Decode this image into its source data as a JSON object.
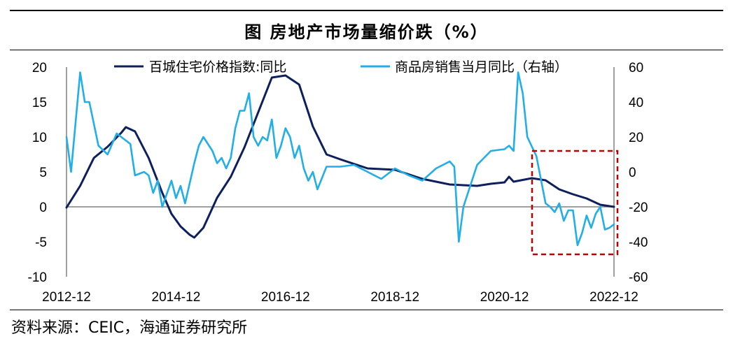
{
  "title": "图    房地产市场量缩价跌（%）",
  "source": "资料来源：CEIC，海通证券研究所",
  "colors": {
    "index_line": "#0d1f5c",
    "sales_line": "#22aee6",
    "highlight_box": "#c00000"
  },
  "chart_data": {
    "type": "line",
    "x_ticks": [
      "2012-12",
      "2014-12",
      "2016-12",
      "2018-12",
      "2020-12",
      "2022-12"
    ],
    "x_range": [
      "2012-12",
      "2022-12"
    ],
    "y_left": {
      "range": [
        -10,
        20
      ],
      "ticks": [
        -10,
        -5,
        0,
        5,
        10,
        15,
        20
      ]
    },
    "y_right": {
      "range": [
        -60,
        60
      ],
      "ticks": [
        -60,
        -40,
        -20,
        0,
        20,
        40,
        60
      ]
    },
    "grid": false,
    "legend_placement": "top",
    "series": [
      {
        "name": "百城住宅价格指数:同比",
        "axis": "left",
        "color": "#0d1f5c",
        "points": [
          [
            "2012-12",
            -0.1
          ],
          [
            "2013-03",
            3.0
          ],
          [
            "2013-06",
            7.0
          ],
          [
            "2013-09",
            8.6
          ],
          [
            "2013-12",
            10.6
          ],
          [
            "2014-01",
            11.4
          ],
          [
            "2014-03",
            10.8
          ],
          [
            "2014-06",
            7.0
          ],
          [
            "2014-09",
            2.0
          ],
          [
            "2014-11",
            -1.0
          ],
          [
            "2015-01",
            -2.8
          ],
          [
            "2015-03",
            -4.0
          ],
          [
            "2015-04",
            -4.4
          ],
          [
            "2015-06",
            -3.0
          ],
          [
            "2015-09",
            1.3
          ],
          [
            "2015-12",
            4.3
          ],
          [
            "2016-03",
            8.5
          ],
          [
            "2016-06",
            13.5
          ],
          [
            "2016-09",
            18.5
          ],
          [
            "2016-12",
            18.8
          ],
          [
            "2017-03",
            17.5
          ],
          [
            "2017-06",
            11.5
          ],
          [
            "2017-09",
            7.5
          ],
          [
            "2017-12",
            6.8
          ],
          [
            "2018-06",
            5.5
          ],
          [
            "2018-12",
            5.3
          ],
          [
            "2019-06",
            4.0
          ],
          [
            "2019-12",
            3.2
          ],
          [
            "2020-06",
            3.0
          ],
          [
            "2020-09",
            3.3
          ],
          [
            "2020-12",
            3.5
          ],
          [
            "2021-01",
            4.3
          ],
          [
            "2021-02",
            3.6
          ],
          [
            "2021-06",
            4.1
          ],
          [
            "2021-09",
            3.8
          ],
          [
            "2021-12",
            2.5
          ],
          [
            "2022-03",
            1.8
          ],
          [
            "2022-06",
            1.2
          ],
          [
            "2022-09",
            0.3
          ],
          [
            "2022-12",
            0.0
          ]
        ]
      },
      {
        "name": "商品房销售当月同比（右轴）",
        "axis": "right",
        "color": "#22aee6",
        "points": [
          [
            "2012-12",
            20
          ],
          [
            "2013-01",
            0
          ],
          [
            "2013-03",
            57
          ],
          [
            "2013-04",
            40
          ],
          [
            "2013-05",
            40
          ],
          [
            "2013-07",
            15
          ],
          [
            "2013-09",
            10
          ],
          [
            "2013-11",
            22
          ],
          [
            "2013-12",
            20
          ],
          [
            "2014-02",
            16
          ],
          [
            "2014-03",
            -2
          ],
          [
            "2014-05",
            0
          ],
          [
            "2014-06",
            -2
          ],
          [
            "2014-07",
            -12
          ],
          [
            "2014-08",
            -5
          ],
          [
            "2014-09",
            -20
          ],
          [
            "2014-11",
            -5
          ],
          [
            "2014-12",
            -15
          ],
          [
            "2015-01",
            -8
          ],
          [
            "2015-02",
            -18
          ],
          [
            "2015-04",
            5
          ],
          [
            "2015-05",
            15
          ],
          [
            "2015-06",
            20
          ],
          [
            "2015-08",
            12
          ],
          [
            "2015-09",
            5
          ],
          [
            "2015-10",
            8
          ],
          [
            "2015-11",
            2
          ],
          [
            "2015-12",
            8
          ],
          [
            "2016-01",
            25
          ],
          [
            "2016-02",
            35
          ],
          [
            "2016-03",
            35
          ],
          [
            "2016-04",
            45
          ],
          [
            "2016-05",
            20
          ],
          [
            "2016-06",
            15
          ],
          [
            "2016-07",
            20
          ],
          [
            "2016-08",
            18
          ],
          [
            "2016-09",
            30
          ],
          [
            "2016-10",
            8
          ],
          [
            "2016-11",
            15
          ],
          [
            "2016-12",
            25
          ],
          [
            "2017-01",
            20
          ],
          [
            "2017-02",
            8
          ],
          [
            "2017-03",
            15
          ],
          [
            "2017-04",
            2
          ],
          [
            "2017-05",
            -5
          ],
          [
            "2017-06",
            0
          ],
          [
            "2017-07",
            -10
          ],
          [
            "2017-09",
            3
          ],
          [
            "2017-12",
            3
          ],
          [
            "2018-03",
            4
          ],
          [
            "2018-06",
            0
          ],
          [
            "2018-09",
            -4
          ],
          [
            "2018-12",
            2
          ],
          [
            "2019-03",
            -2
          ],
          [
            "2019-06",
            -5
          ],
          [
            "2019-09",
            2
          ],
          [
            "2019-12",
            6
          ],
          [
            "2020-01",
            3
          ],
          [
            "2020-02",
            -40
          ],
          [
            "2020-03",
            -20
          ],
          [
            "2020-06",
            4
          ],
          [
            "2020-09",
            12
          ],
          [
            "2020-12",
            13
          ],
          [
            "2021-01",
            15
          ],
          [
            "2021-02",
            12
          ],
          [
            "2021-03",
            57
          ],
          [
            "2021-04",
            45
          ],
          [
            "2021-05",
            20
          ],
          [
            "2021-07",
            9
          ],
          [
            "2021-09",
            -18
          ],
          [
            "2021-10",
            -20
          ],
          [
            "2021-11",
            -23
          ],
          [
            "2021-12",
            -18
          ],
          [
            "2022-01",
            -28
          ],
          [
            "2022-02",
            -22
          ],
          [
            "2022-03",
            -22
          ],
          [
            "2022-04",
            -42
          ],
          [
            "2022-05",
            -35
          ],
          [
            "2022-06",
            -25
          ],
          [
            "2022-07",
            -32
          ],
          [
            "2022-08",
            -24
          ],
          [
            "2022-09",
            -20
          ],
          [
            "2022-10",
            -33
          ],
          [
            "2022-11",
            -32
          ],
          [
            "2022-12",
            -30
          ]
        ]
      }
    ]
  }
}
